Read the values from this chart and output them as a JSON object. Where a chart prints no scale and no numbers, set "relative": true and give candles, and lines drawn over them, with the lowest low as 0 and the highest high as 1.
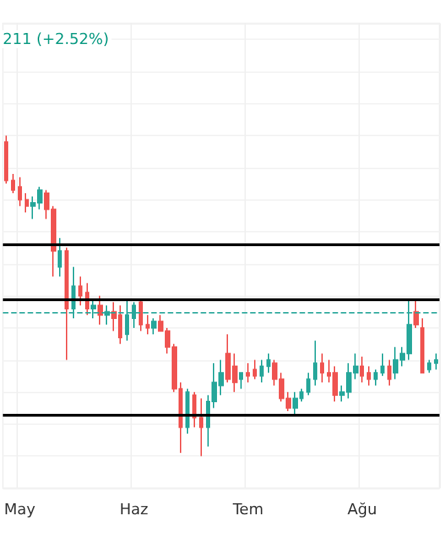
{
  "chart_data": {
    "type": "candlestick",
    "relative": true,
    "grid": true,
    "categories": [
      null,
      null,
      "May",
      null,
      null,
      null,
      null,
      null,
      null,
      null,
      null,
      null,
      null,
      null,
      null,
      null,
      null,
      null,
      null,
      "Haz",
      null,
      null,
      null,
      null,
      null,
      null,
      null,
      null,
      null,
      null,
      null,
      null,
      null,
      null,
      null,
      null,
      "Tem",
      null,
      null,
      null,
      null,
      null,
      null,
      null,
      null,
      null,
      null,
      null,
      null,
      null,
      null,
      null,
      null,
      "Ağu",
      null,
      null,
      null,
      null,
      null,
      null,
      null,
      null,
      null,
      null,
      null
    ],
    "colors": [
      "#ef5350",
      "#ef5350",
      "#ef5350",
      "#ef5350",
      "#26a69a",
      "#26a69a",
      "#ef5350",
      "#ef5350",
      "#26a69a",
      "#ef5350",
      "#26a69a",
      "#ef5350",
      "#ef5350",
      "#26a69a",
      "#ef5350",
      "#26a69a",
      "#ef5350",
      "#ef5350",
      "#26a69a",
      "#26a69a",
      "#ef5350",
      "#ef5350",
      "#26a69a",
      "#ef5350",
      "#ef5350",
      "#ef5350",
      "#ef5350",
      "#26a69a",
      "#ef5350",
      "#ef5350",
      "#26a69a",
      "#26a69a",
      "#26a69a",
      "#ef5350",
      "#ef5350",
      "#26a69a",
      "#ef5350",
      "#ef5350",
      "#26a69a",
      "#26a69a",
      "#ef5350",
      "#ef5350",
      "#ef5350",
      "#26a69a",
      "#26a69a",
      "#26a69a",
      "#26a69a",
      "#ef5350",
      "#ef5350",
      "#ef5350",
      "#26a69a",
      "#26a69a",
      "#26a69a",
      "#ef5350",
      "#ef5350",
      "#26a69a",
      "#26a69a",
      "#ef5350",
      "#26a69a",
      "#26a69a",
      "#26a69a",
      "#ef5350",
      "#ef5350",
      "#26a69a",
      "#26a69a"
    ],
    "ohlc": [
      [
        0.98,
        1.0,
        0.85,
        0.86
      ],
      [
        0.86,
        0.88,
        0.82,
        0.83
      ],
      [
        0.84,
        0.87,
        0.78,
        0.8
      ],
      [
        0.8,
        0.82,
        0.76,
        0.78
      ],
      [
        0.78,
        0.81,
        0.74,
        0.79
      ],
      [
        0.79,
        0.84,
        0.77,
        0.83
      ],
      [
        0.82,
        0.83,
        0.74,
        0.77
      ],
      [
        0.77,
        0.78,
        0.56,
        0.64
      ],
      [
        0.59,
        0.68,
        0.56,
        0.64
      ],
      [
        0.64,
        0.65,
        0.3,
        0.46
      ],
      [
        0.46,
        0.59,
        0.43,
        0.53
      ],
      [
        0.53,
        0.56,
        0.47,
        0.5
      ],
      [
        0.51,
        0.54,
        0.44,
        0.46
      ],
      [
        0.46,
        0.49,
        0.43,
        0.47
      ],
      [
        0.47,
        0.5,
        0.41,
        0.44
      ],
      [
        0.44,
        0.47,
        0.41,
        0.45
      ],
      [
        0.45,
        0.48,
        0.39,
        0.43
      ],
      [
        0.44,
        0.47,
        0.35,
        0.37
      ],
      [
        0.38,
        0.49,
        0.36,
        0.44
      ],
      [
        0.43,
        0.48,
        0.4,
        0.47
      ],
      [
        0.48,
        0.49,
        0.39,
        0.41
      ],
      [
        0.41,
        0.44,
        0.38,
        0.4
      ],
      [
        0.4,
        0.43,
        0.38,
        0.42
      ],
      [
        0.42,
        0.44,
        0.39,
        0.39
      ],
      [
        0.39,
        0.4,
        0.32,
        0.34
      ],
      [
        0.34,
        0.35,
        0.2,
        0.21
      ],
      [
        0.21,
        0.23,
        0.01,
        0.09
      ],
      [
        0.09,
        0.21,
        0.07,
        0.2
      ],
      [
        0.19,
        0.2,
        0.09,
        0.12
      ],
      [
        0.12,
        0.18,
        0.0,
        0.09
      ],
      [
        0.09,
        0.19,
        0.03,
        0.17
      ],
      [
        0.17,
        0.29,
        0.15,
        0.23
      ],
      [
        0.22,
        0.3,
        0.19,
        0.26
      ],
      [
        0.32,
        0.38,
        0.23,
        0.24
      ],
      [
        0.28,
        0.32,
        0.2,
        0.23
      ],
      [
        0.24,
        0.26,
        0.21,
        0.26
      ],
      [
        0.26,
        0.29,
        0.23,
        0.25
      ],
      [
        0.27,
        0.3,
        0.24,
        0.25
      ],
      [
        0.25,
        0.3,
        0.23,
        0.28
      ],
      [
        0.28,
        0.32,
        0.26,
        0.3
      ],
      [
        0.29,
        0.3,
        0.22,
        0.24
      ],
      [
        0.24,
        0.26,
        0.17,
        0.18
      ],
      [
        0.18,
        0.2,
        0.14,
        0.15
      ],
      [
        0.15,
        0.2,
        0.13,
        0.18
      ],
      [
        0.18,
        0.21,
        0.17,
        0.2
      ],
      [
        0.2,
        0.26,
        0.19,
        0.24
      ],
      [
        0.24,
        0.36,
        0.22,
        0.29
      ],
      [
        0.29,
        0.32,
        0.23,
        0.26
      ],
      [
        0.26,
        0.3,
        0.23,
        0.25
      ],
      [
        0.26,
        0.28,
        0.17,
        0.19
      ],
      [
        0.19,
        0.22,
        0.17,
        0.2
      ],
      [
        0.2,
        0.29,
        0.18,
        0.26
      ],
      [
        0.26,
        0.32,
        0.24,
        0.28
      ],
      [
        0.28,
        0.31,
        0.23,
        0.25
      ],
      [
        0.26,
        0.28,
        0.22,
        0.24
      ],
      [
        0.24,
        0.27,
        0.22,
        0.26
      ],
      [
        0.26,
        0.32,
        0.25,
        0.28
      ],
      [
        0.28,
        0.3,
        0.22,
        0.24
      ],
      [
        0.26,
        0.34,
        0.24,
        0.3
      ],
      [
        0.3,
        0.34,
        0.28,
        0.32
      ],
      [
        0.32,
        0.49,
        0.3,
        0.41
      ],
      [
        0.45,
        0.49,
        0.4,
        0.41
      ],
      [
        0.4,
        0.43,
        0.26,
        0.26
      ],
      [
        0.27,
        0.3,
        0.26,
        0.29
      ],
      [
        0.29,
        0.32,
        0.27,
        0.3
      ]
    ],
    "ref_lines": [
      {
        "axis": "y",
        "value": 0.66,
        "color": "#000000"
      },
      {
        "axis": "y",
        "value": 0.49,
        "color": "#000000"
      },
      {
        "axis": "y",
        "value": 0.13,
        "color": "#000000"
      },
      {
        "axis": "y",
        "value": 0.45,
        "color": "#26a69a",
        "line_style": "dashed"
      }
    ],
    "annotations": [
      "211 (+2.52%)"
    ]
  }
}
